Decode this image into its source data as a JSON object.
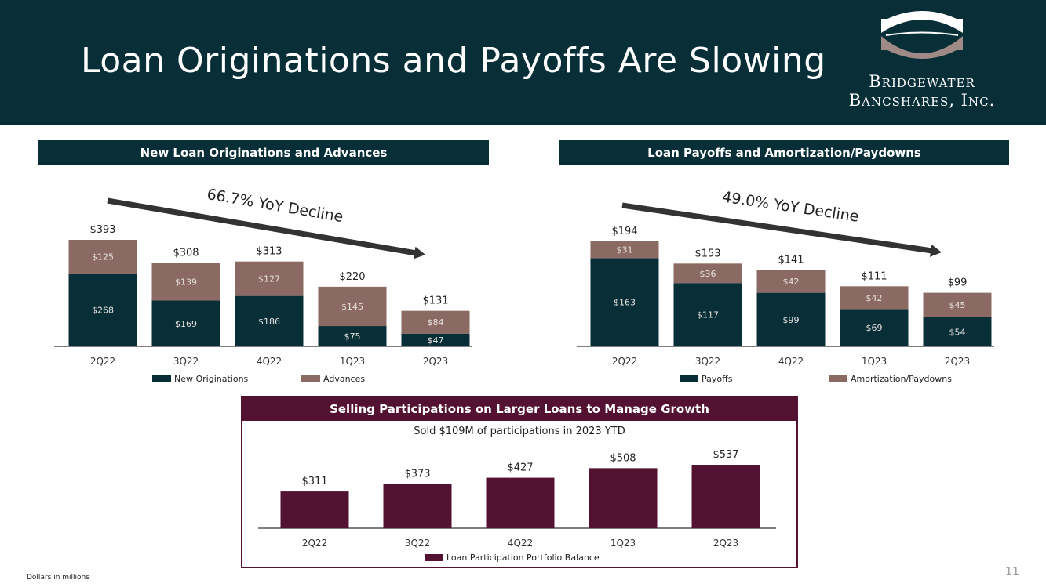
{
  "header": {
    "title": "Loan Originations and Payoffs Are Slowing",
    "logo_line1": "Bridgewater",
    "logo_line2": "Bancshares, Inc."
  },
  "colors": {
    "dark": "#082f38",
    "brown": "#8a6a62",
    "maroon": "#541232"
  },
  "footer": {
    "note": "Dollars in millions",
    "page": "11"
  },
  "chart_data": [
    {
      "type": "bar",
      "stacked": true,
      "title": "New Loan Originations and Advances",
      "annotation": "66.7% YoY Decline",
      "categories": [
        "2Q22",
        "3Q22",
        "4Q22",
        "1Q23",
        "2Q23"
      ],
      "series": [
        {
          "name": "New Originations",
          "values": [
            268,
            169,
            186,
            75,
            47
          ],
          "labels": [
            "$268",
            "$169",
            "$186",
            "$75",
            "$47"
          ]
        },
        {
          "name": "Advances",
          "values": [
            125,
            139,
            127,
            145,
            84
          ],
          "labels": [
            "$125",
            "$139",
            "$127",
            "$145",
            "$84"
          ]
        }
      ],
      "totals": [
        "$393",
        "$308",
        "$313",
        "$220",
        "$131"
      ],
      "ymax": 393,
      "legend": "bottom"
    },
    {
      "type": "bar",
      "stacked": true,
      "title": "Loan Payoffs and Amortization/Paydowns",
      "annotation": "49.0% YoY Decline",
      "categories": [
        "2Q22",
        "3Q22",
        "4Q22",
        "1Q23",
        "2Q23"
      ],
      "series": [
        {
          "name": "Payoffs",
          "values": [
            163,
            117,
            99,
            69,
            54
          ],
          "labels": [
            "$163",
            "$117",
            "$99",
            "$69",
            "$54"
          ]
        },
        {
          "name": "Amortization/Paydowns",
          "values": [
            31,
            36,
            42,
            42,
            45
          ],
          "labels": [
            "$31",
            "$36",
            "$42",
            "$42",
            "$45"
          ]
        }
      ],
      "totals": [
        "$194",
        "$153",
        "$141",
        "$111",
        "$99"
      ],
      "ymax": 194,
      "legend": "bottom"
    },
    {
      "type": "bar",
      "stacked": false,
      "title": "Selling Participations on Larger Loans to Manage Growth",
      "subtitle": "Sold $109M of participations in 2023 YTD",
      "categories": [
        "2Q22",
        "3Q22",
        "4Q22",
        "1Q23",
        "2Q23"
      ],
      "series": [
        {
          "name": "Loan Participation Portfolio Balance",
          "values": [
            311,
            373,
            427,
            508,
            537
          ],
          "labels": [
            "$311",
            "$373",
            "$427",
            "$508",
            "$537"
          ]
        }
      ],
      "totals": [
        "$311",
        "$373",
        "$427",
        "$508",
        "$537"
      ],
      "ymax": 537,
      "legend": "bottom"
    }
  ]
}
